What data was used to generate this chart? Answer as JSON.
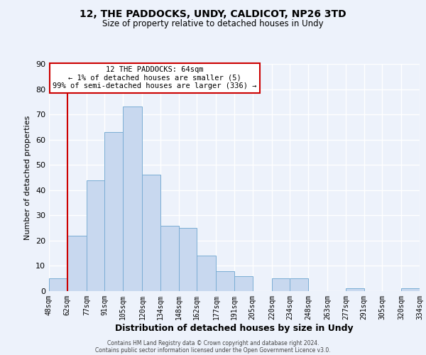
{
  "title": "12, THE PADDOCKS, UNDY, CALDICOT, NP26 3TD",
  "subtitle": "Size of property relative to detached houses in Undy",
  "xlabel": "Distribution of detached houses by size in Undy",
  "ylabel": "Number of detached properties",
  "bar_color": "#c8d8ef",
  "bar_edge_color": "#7aadd4",
  "background_color": "#edf2fb",
  "grid_color": "#ffffff",
  "annotation_box_color": "#cc0000",
  "annotation_line1": "12 THE PADDOCKS: 64sqm",
  "annotation_line2": "← 1% of detached houses are smaller (5)",
  "annotation_line3": "99% of semi-detached houses are larger (336) →",
  "marker_line_color": "#cc0000",
  "bin_edges": [
    48,
    62,
    77,
    91,
    105,
    120,
    134,
    148,
    162,
    177,
    191,
    205,
    220,
    234,
    248,
    263,
    277,
    291,
    305,
    320,
    334
  ],
  "bin_labels": [
    "48sqm",
    "62sqm",
    "77sqm",
    "91sqm",
    "105sqm",
    "120sqm",
    "134sqm",
    "148sqm",
    "162sqm",
    "177sqm",
    "191sqm",
    "205sqm",
    "220sqm",
    "234sqm",
    "248sqm",
    "263sqm",
    "277sqm",
    "291sqm",
    "305sqm",
    "320sqm",
    "334sqm"
  ],
  "counts": [
    5,
    22,
    44,
    63,
    73,
    46,
    26,
    25,
    14,
    8,
    6,
    0,
    5,
    5,
    0,
    0,
    1,
    0,
    0,
    1
  ],
  "ylim": [
    0,
    90
  ],
  "yticks": [
    0,
    10,
    20,
    30,
    40,
    50,
    60,
    70,
    80,
    90
  ],
  "footer1": "Contains HM Land Registry data © Crown copyright and database right 2024.",
  "footer2": "Contains public sector information licensed under the Open Government Licence v3.0."
}
